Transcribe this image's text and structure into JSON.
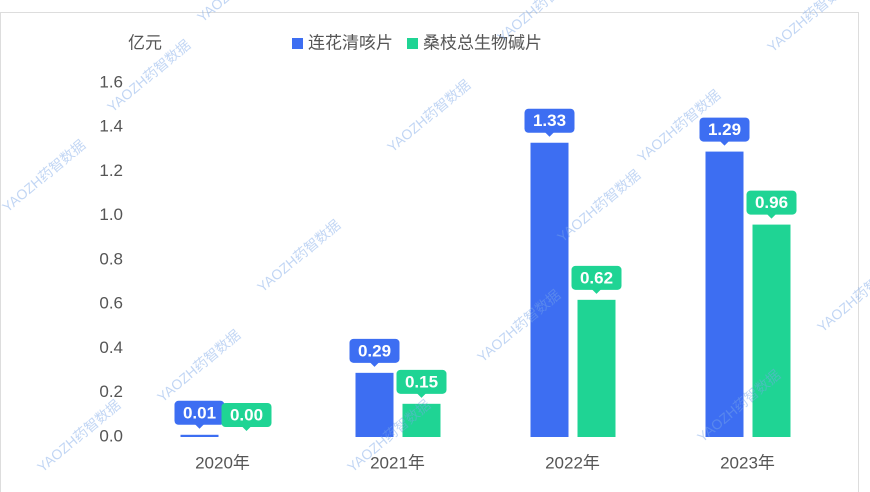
{
  "chart_data": {
    "type": "bar",
    "unit_label": "亿元",
    "watermark": "YAOZH药智数据",
    "categories": [
      "2020年",
      "2021年",
      "2022年",
      "2023年"
    ],
    "series": [
      {
        "name": "连花清咳片",
        "color": "#3d6ef2",
        "values": [
          0.01,
          0.29,
          1.33,
          1.29
        ],
        "value_labels": [
          "0.01",
          "0.29",
          "1.33",
          "1.29"
        ]
      },
      {
        "name": "桑枝总生物碱片",
        "color": "#1fd494",
        "values": [
          0,
          0.15,
          0.62,
          0.96
        ],
        "value_labels": [
          "0.00",
          "0.15",
          "0.62",
          "0.96"
        ]
      }
    ],
    "ylim": [
      0,
      1.6
    ],
    "yticks": [
      {
        "value": 0,
        "label": "0.0"
      },
      0.2,
      0.4,
      0.6,
      0.8,
      {
        "value": 1,
        "label": "1.0"
      },
      1.2,
      1.4,
      1.6
    ],
    "grid": false
  }
}
